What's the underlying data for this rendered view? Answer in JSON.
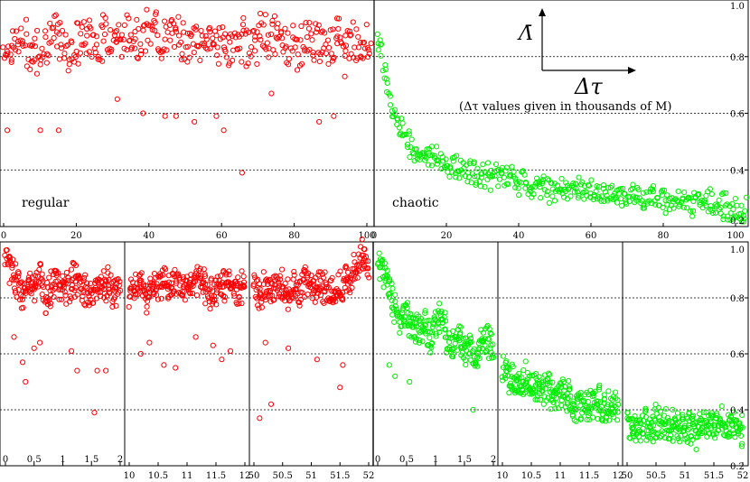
{
  "chart_data": [
    {
      "panel": "top",
      "type": "scatter",
      "annotations": {
        "y_label": "Λ̄",
        "x_label": "Δτ",
        "note": "(Δτ values given in thousands of M)",
        "regular_label": "regular",
        "chaotic_label": "chaotic"
      },
      "ylim": [
        0.2,
        1.0
      ],
      "y_ticks": [
        "0.2",
        "0.4",
        "0.6",
        "0.8",
        "1.0"
      ],
      "grid_y": [
        0.4,
        0.6,
        0.8
      ],
      "regular": {
        "color": "#ff0000",
        "xlim": [
          0,
          100
        ],
        "x_ticks": [
          "0",
          "20",
          "40",
          "60",
          "80",
          "100"
        ],
        "x": [
          2,
          5,
          8,
          11,
          14,
          17,
          20,
          23,
          26,
          29,
          32,
          35,
          38,
          41,
          44,
          47,
          50,
          53,
          56,
          59,
          62,
          65,
          68,
          71,
          74,
          77,
          80,
          83,
          86,
          89,
          92,
          95,
          98
        ],
        "y": [
          0.83,
          0.86,
          0.81,
          0.85,
          0.88,
          0.82,
          0.84,
          0.87,
          0.85,
          0.89,
          0.86,
          0.88,
          0.87,
          0.9,
          0.85,
          0.88,
          0.86,
          0.84,
          0.87,
          0.85,
          0.83,
          0.86,
          0.84,
          0.88,
          0.87,
          0.85,
          0.83,
          0.86,
          0.84,
          0.87,
          0.85,
          0.86,
          0.84
        ],
        "outliers_x": [
          1,
          10,
          15,
          31,
          38,
          44,
          47,
          52,
          58,
          60,
          65,
          73,
          86,
          90,
          93
        ],
        "outliers_y": [
          0.54,
          0.54,
          0.54,
          0.65,
          0.6,
          0.59,
          0.59,
          0.57,
          0.59,
          0.54,
          0.39,
          0.67,
          0.57,
          0.59,
          0.73
        ]
      },
      "chaotic": {
        "color": "#00ee00",
        "xlim": [
          0,
          100
        ],
        "x_ticks": [
          "0",
          "20",
          "40",
          "60",
          "80",
          "100"
        ],
        "x": [
          1,
          2,
          3,
          4,
          5,
          6,
          8,
          10,
          12,
          15,
          18,
          22,
          26,
          30,
          35,
          40,
          45,
          50,
          55,
          60,
          65,
          70,
          75,
          80,
          85,
          90,
          95,
          99
        ],
        "y": [
          0.86,
          0.76,
          0.68,
          0.63,
          0.58,
          0.55,
          0.51,
          0.48,
          0.46,
          0.44,
          0.42,
          0.4,
          0.39,
          0.38,
          0.37,
          0.35,
          0.34,
          0.33,
          0.33,
          0.32,
          0.31,
          0.3,
          0.3,
          0.29,
          0.28,
          0.28,
          0.27,
          0.26
        ]
      }
    },
    {
      "panel": "bottom",
      "type": "scatter",
      "ylim": [
        0.2,
        1.0
      ],
      "y_ticks": [
        "0.2",
        "0.4",
        "0.6",
        "0.8",
        "1.0"
      ],
      "grid_y": [
        0.4,
        0.6,
        0.8
      ],
      "regular_segments": [
        {
          "color": "#ff0000",
          "xlim": [
            0,
            2
          ],
          "x_ticks": [
            "0",
            "0.5",
            "1",
            "1.5",
            "2"
          ],
          "x": [
            0.0,
            0.1,
            0.2,
            0.3,
            0.4,
            0.5,
            0.6,
            0.7,
            0.8,
            0.9,
            1.0,
            1.1,
            1.2,
            1.3,
            1.4,
            1.5,
            1.6,
            1.7,
            1.8,
            1.9,
            2.0
          ],
          "y": [
            0.95,
            0.9,
            0.86,
            0.82,
            0.84,
            0.85,
            0.89,
            0.8,
            0.83,
            0.86,
            0.84,
            0.82,
            0.87,
            0.84,
            0.82,
            0.8,
            0.86,
            0.83,
            0.85,
            0.82,
            0.84
          ],
          "outliers_x": [
            0.15,
            0.3,
            0.35,
            0.5,
            0.6,
            1.15,
            1.25,
            1.55,
            1.6,
            1.75
          ],
          "outliers_y": [
            0.66,
            0.57,
            0.5,
            0.62,
            0.64,
            0.61,
            0.54,
            0.39,
            0.54,
            0.54
          ]
        },
        {
          "color": "#ff0000",
          "xlim": [
            10,
            12
          ],
          "x_ticks": [
            "10",
            "10.5",
            "11",
            "11.5",
            "12"
          ],
          "x": [
            10.0,
            10.1,
            10.2,
            10.3,
            10.4,
            10.5,
            10.6,
            10.7,
            10.8,
            10.9,
            11.0,
            11.1,
            11.2,
            11.3,
            11.4,
            11.5,
            11.6,
            11.7,
            11.8,
            11.9,
            12.0
          ],
          "y": [
            0.82,
            0.84,
            0.86,
            0.8,
            0.85,
            0.83,
            0.88,
            0.84,
            0.86,
            0.82,
            0.85,
            0.83,
            0.86,
            0.84,
            0.81,
            0.85,
            0.83,
            0.86,
            0.84,
            0.82,
            0.85
          ],
          "outliers_x": [
            10.2,
            10.35,
            10.6,
            10.8,
            11.15,
            11.45,
            11.6,
            11.75
          ],
          "outliers_y": [
            0.6,
            0.64,
            0.56,
            0.55,
            0.66,
            0.63,
            0.58,
            0.61
          ]
        },
        {
          "color": "#ff0000",
          "xlim": [
            50,
            52
          ],
          "x_ticks": [
            "50",
            "50.5",
            "51",
            "51.5",
            "52"
          ],
          "x": [
            50.0,
            50.1,
            50.2,
            50.3,
            50.4,
            50.5,
            50.6,
            50.7,
            50.8,
            50.9,
            51.0,
            51.1,
            51.2,
            51.3,
            51.4,
            51.5,
            51.6,
            51.7,
            51.8,
            51.9,
            52.0
          ],
          "y": [
            0.84,
            0.82,
            0.85,
            0.83,
            0.86,
            0.84,
            0.81,
            0.85,
            0.83,
            0.86,
            0.84,
            0.82,
            0.85,
            0.83,
            0.8,
            0.84,
            0.86,
            0.88,
            0.92,
            0.96,
            0.88
          ],
          "outliers_x": [
            50.1,
            50.2,
            50.3,
            50.6,
            51.1,
            51.5,
            51.55
          ],
          "outliers_y": [
            0.37,
            0.64,
            0.42,
            0.62,
            0.58,
            0.48,
            0.56
          ]
        }
      ],
      "chaotic_segments": [
        {
          "color": "#00ee00",
          "xlim": [
            0,
            2
          ],
          "x_ticks": [
            "0",
            "0.5",
            "1",
            "1.5",
            "2"
          ],
          "x": [
            0.0,
            0.1,
            0.2,
            0.3,
            0.4,
            0.5,
            0.6,
            0.7,
            0.8,
            0.9,
            1.0,
            1.1,
            1.2,
            1.3,
            1.4,
            1.5,
            1.6,
            1.7,
            1.8,
            1.9,
            2.0
          ],
          "y": [
            0.94,
            0.9,
            0.82,
            0.76,
            0.72,
            0.74,
            0.7,
            0.68,
            0.72,
            0.66,
            0.7,
            0.72,
            0.65,
            0.62,
            0.68,
            0.6,
            0.63,
            0.58,
            0.66,
            0.64,
            0.6
          ],
          "outliers_x": [
            0.2,
            0.3,
            0.55,
            1.65
          ],
          "outliers_y": [
            0.56,
            0.52,
            0.5,
            0.4
          ]
        },
        {
          "color": "#00ee00",
          "xlim": [
            10,
            12
          ],
          "x_ticks": [
            "10",
            "10.5",
            "11",
            "11.5",
            "12"
          ],
          "x": [
            10.0,
            10.1,
            10.2,
            10.3,
            10.4,
            10.5,
            10.6,
            10.7,
            10.8,
            10.9,
            11.0,
            11.1,
            11.2,
            11.3,
            11.4,
            11.5,
            11.6,
            11.7,
            11.8,
            11.9,
            12.0
          ],
          "y": [
            0.55,
            0.52,
            0.5,
            0.48,
            0.51,
            0.49,
            0.47,
            0.46,
            0.48,
            0.44,
            0.46,
            0.45,
            0.43,
            0.42,
            0.44,
            0.41,
            0.43,
            0.42,
            0.4,
            0.41,
            0.42
          ],
          "outliers_x": [],
          "outliers_y": []
        },
        {
          "color": "#00ee00",
          "xlim": [
            50,
            52
          ],
          "x_ticks": [
            "50",
            "50.5",
            "51",
            "51.5",
            "52"
          ],
          "x": [
            50.0,
            50.1,
            50.2,
            50.3,
            50.4,
            50.5,
            50.6,
            50.7,
            50.8,
            50.9,
            51.0,
            51.1,
            51.2,
            51.3,
            51.4,
            51.5,
            51.6,
            51.7,
            51.8,
            51.9,
            52.0
          ],
          "y": [
            0.35,
            0.34,
            0.33,
            0.36,
            0.34,
            0.35,
            0.33,
            0.34,
            0.36,
            0.33,
            0.35,
            0.34,
            0.32,
            0.35,
            0.33,
            0.34,
            0.36,
            0.33,
            0.35,
            0.34,
            0.33
          ],
          "outliers_x": [],
          "outliers_y": []
        }
      ]
    }
  ]
}
